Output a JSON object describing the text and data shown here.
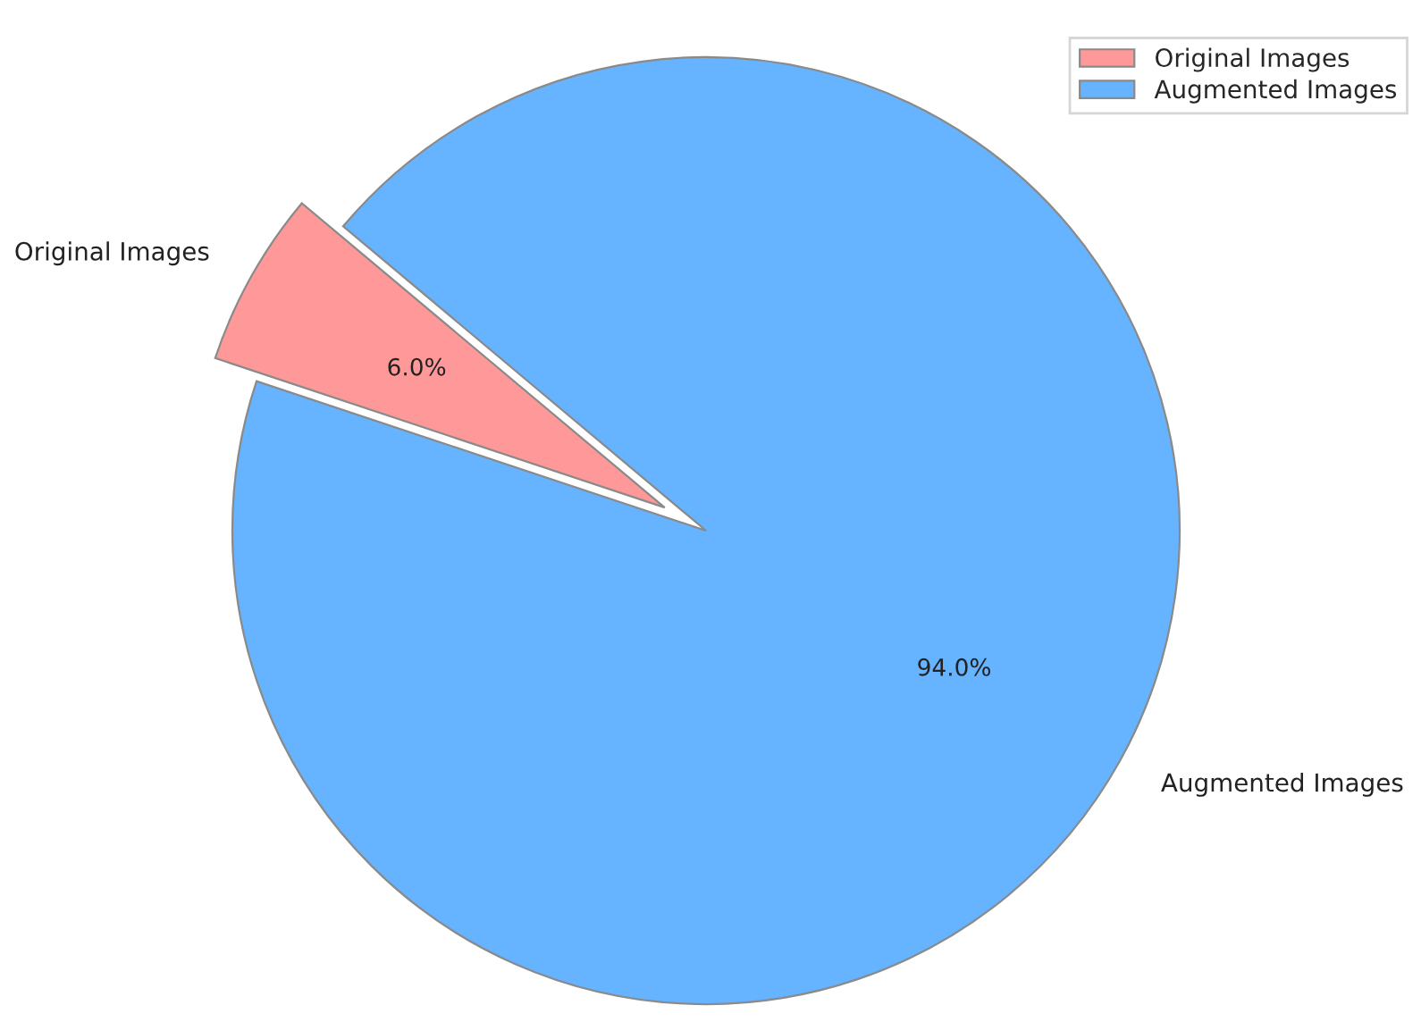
{
  "chart_data": {
    "type": "pie",
    "categories": [
      "Original Images",
      "Augmented Images"
    ],
    "values": [
      6,
      94
    ],
    "colors": [
      "#ff9999",
      "#66b3ff"
    ],
    "value_labels": [
      "6.0%",
      "94.0%"
    ],
    "legend": "top right"
  }
}
